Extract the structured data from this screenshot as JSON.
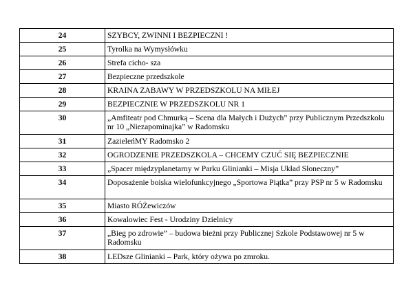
{
  "rows": [
    {
      "number": "24",
      "title": "SZYBCY, ZWINNI I BEZPIECZNI !"
    },
    {
      "number": "25",
      "title": "Tyrolka na Wymysłówku"
    },
    {
      "number": "26",
      "title": "Strefa cicho- sza"
    },
    {
      "number": "27",
      "title": "Bezpieczne przedszkole"
    },
    {
      "number": "28",
      "title": "KRAINA ZABAWY W PRZEDSZKOLU NA MIŁEJ"
    },
    {
      "number": "29",
      "title": "BEZPIECZNIE W PRZEDSZKOLU NR 1"
    },
    {
      "number": "30",
      "title": "„Amfiteatr pod Chmurką – Scena dla Małych i Dużych” przy Publicznym Przedszkolu nr 10 „Niezapominajka” w Radomsku"
    },
    {
      "number": "31",
      "title": "ZazieleńMY Radomsko 2"
    },
    {
      "number": "32",
      "title": "OGRODZENIE PRZEDSZKOLA – CHCEMY CZUĆ SIĘ BEZPIECZNIE"
    },
    {
      "number": "33",
      "title": "„Spacer międzyplanetarny w Parku Glinianki – Misja Układ Słoneczny”"
    },
    {
      "number": "34",
      "title": "Doposażenie boiska wielofunkcyjnego  „Sportowa Piątka” przy PSP nr 5 w Radomsku"
    },
    {
      "number": "35",
      "title": "Miasto RÓŻewiczów"
    },
    {
      "number": "36",
      "title": "Kowalowiec Fest - Urodziny Dzielnicy"
    },
    {
      "number": "37",
      "title": "„Bieg po zdrowie” – budowa bieżni przy Publicznej Szkole Podstawowej nr 5 w Radomsku"
    },
    {
      "number": "38",
      "title": "LEDsze Glinianki – Park, który ożywa po zmroku."
    }
  ]
}
